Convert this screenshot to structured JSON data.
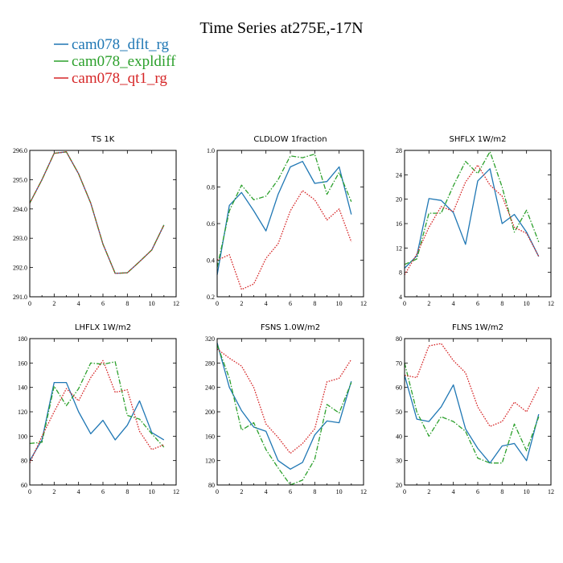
{
  "title": "Time Series at275E,-17N",
  "legend": [
    {
      "label": "cam078_dflt_rg",
      "color": "#1f77b4"
    },
    {
      "label": "cam078_expldiff",
      "color": "#2ca02c"
    },
    {
      "label": "cam078_qt1_rg",
      "color": "#d62728"
    }
  ],
  "chart_data": [
    {
      "type": "line",
      "title": "TS   1K",
      "xlim": [
        0,
        12
      ],
      "ylim": [
        291,
        296
      ],
      "xticks": [
        "0",
        "2",
        "4",
        "6",
        "8",
        "10",
        "12"
      ],
      "yticks": [
        "291.0",
        "292.0",
        "293.0",
        "294.0",
        "295.0",
        "296.0"
      ],
      "x": [
        0,
        1,
        2,
        3,
        4,
        5,
        6,
        7,
        8,
        9,
        10,
        11
      ],
      "series": [
        {
          "color": "#1f77b4",
          "dashed": false,
          "values": [
            294.2,
            295.0,
            295.9,
            295.95,
            295.2,
            294.2,
            292.8,
            291.8,
            291.82,
            292.2,
            292.6,
            293.45
          ]
        },
        {
          "color": "#2ca02c",
          "dashed": true,
          "values": [
            294.2,
            295.0,
            295.9,
            295.95,
            295.2,
            294.2,
            292.8,
            291.8,
            291.82,
            292.2,
            292.6,
            293.45
          ]
        },
        {
          "color": "#d62728",
          "dashed": true,
          "values": [
            294.2,
            295.0,
            295.9,
            295.95,
            295.2,
            294.2,
            292.8,
            291.8,
            291.82,
            292.2,
            292.6,
            293.45
          ]
        }
      ]
    },
    {
      "type": "line",
      "title": "CLDLOW   1fraction",
      "xlim": [
        0,
        12
      ],
      "ylim": [
        0.2,
        1.0
      ],
      "xticks": [
        "0",
        "2",
        "4",
        "6",
        "8",
        "10",
        "12"
      ],
      "yticks": [
        "0.2",
        "0.4",
        "0.6",
        "0.8",
        "1.0"
      ],
      "x": [
        0,
        1,
        2,
        3,
        4,
        5,
        6,
        7,
        8,
        9,
        10,
        11
      ],
      "series": [
        {
          "color": "#1f77b4",
          "dashed": false,
          "values": [
            0.32,
            0.7,
            0.77,
            0.67,
            0.56,
            0.76,
            0.91,
            0.94,
            0.82,
            0.83,
            0.91,
            0.65
          ]
        },
        {
          "color": "#2ca02c",
          "dashed": true,
          "values": [
            0.36,
            0.67,
            0.81,
            0.73,
            0.75,
            0.84,
            0.97,
            0.96,
            0.98,
            0.76,
            0.88,
            0.72
          ]
        },
        {
          "color": "#d62728",
          "dashed": true,
          "values": [
            0.4,
            0.43,
            0.24,
            0.27,
            0.41,
            0.49,
            0.67,
            0.78,
            0.73,
            0.62,
            0.68,
            0.5
          ]
        }
      ]
    },
    {
      "type": "line",
      "title": "SHFLX   1W/m2",
      "xlim": [
        0,
        12
      ],
      "ylim": [
        4,
        28
      ],
      "xticks": [
        "0",
        "2",
        "4",
        "6",
        "8",
        "10",
        "12"
      ],
      "yticks": [
        "4",
        "8",
        "12",
        "16",
        "20",
        "24",
        "28"
      ],
      "x": [
        0,
        1,
        2,
        3,
        4,
        5,
        6,
        7,
        8,
        9,
        10,
        11
      ],
      "series": [
        {
          "color": "#1f77b4",
          "dashed": false,
          "values": [
            8.7,
            10.7,
            20.1,
            19.8,
            17.8,
            12.6,
            23.0,
            25.0,
            16.0,
            17.5,
            14.6,
            10.6
          ]
        },
        {
          "color": "#2ca02c",
          "dashed": true,
          "values": [
            9.3,
            10.2,
            17.7,
            17.7,
            22.2,
            26.2,
            24.2,
            27.8,
            22.0,
            14.6,
            18.2,
            13.0
          ]
        },
        {
          "color": "#d62728",
          "dashed": true,
          "values": [
            7.6,
            11.0,
            15.4,
            18.8,
            18.0,
            22.8,
            25.6,
            22.3,
            20.5,
            15.4,
            14.4,
            10.6
          ]
        }
      ]
    },
    {
      "type": "line",
      "title": "LHFLX   1W/m2",
      "xlim": [
        0,
        12
      ],
      "ylim": [
        60,
        180
      ],
      "xticks": [
        "0",
        "2",
        "4",
        "6",
        "8",
        "10",
        "12"
      ],
      "yticks": [
        "60",
        "80",
        "100",
        "120",
        "140",
        "160",
        "180"
      ],
      "x": [
        0,
        1,
        2,
        3,
        4,
        5,
        6,
        7,
        8,
        9,
        10,
        11
      ],
      "series": [
        {
          "color": "#1f77b4",
          "dashed": false,
          "values": [
            80,
            97,
            144,
            144,
            120,
            102,
            113,
            97,
            109,
            129,
            103,
            97
          ]
        },
        {
          "color": "#2ca02c",
          "dashed": true,
          "values": [
            94,
            95,
            141,
            125,
            139,
            160,
            159,
            161,
            117,
            114,
            102,
            91
          ]
        },
        {
          "color": "#d62728",
          "dashed": true,
          "values": [
            78,
            100,
            120,
            139,
            129,
            148,
            162,
            136,
            138,
            104,
            89,
            93
          ]
        }
      ]
    },
    {
      "type": "line",
      "title": "FSNS   1.0W/m2",
      "xlim": [
        0,
        12
      ],
      "ylim": [
        80,
        320
      ],
      "xticks": [
        "0",
        "2",
        "4",
        "6",
        "8",
        "10",
        "12"
      ],
      "yticks": [
        "80",
        "120",
        "160",
        "200",
        "240",
        "280",
        "320"
      ],
      "x": [
        0,
        1,
        2,
        3,
        4,
        5,
        6,
        7,
        8,
        9,
        10,
        11
      ],
      "series": [
        {
          "color": "#1f77b4",
          "dashed": false,
          "values": [
            313,
            240,
            202,
            175,
            168,
            120,
            106,
            117,
            162,
            185,
            182,
            250
          ]
        },
        {
          "color": "#2ca02c",
          "dashed": true,
          "values": [
            310,
            255,
            170,
            182,
            138,
            108,
            80,
            88,
            122,
            212,
            198,
            248
          ]
        },
        {
          "color": "#d62728",
          "dashed": true,
          "values": [
            303,
            288,
            275,
            240,
            180,
            158,
            132,
            148,
            172,
            249,
            255,
            286
          ]
        }
      ]
    },
    {
      "type": "line",
      "title": "FLNS   1W/m2",
      "xlim": [
        0,
        12
      ],
      "ylim": [
        20,
        80
      ],
      "xticks": [
        "0",
        "2",
        "4",
        "6",
        "8",
        "10",
        "12"
      ],
      "yticks": [
        "20",
        "30",
        "40",
        "50",
        "60",
        "70",
        "80"
      ],
      "x": [
        0,
        1,
        2,
        3,
        4,
        5,
        6,
        7,
        8,
        9,
        10,
        11
      ],
      "series": [
        {
          "color": "#1f77b4",
          "dashed": false,
          "values": [
            65,
            47,
            46,
            52,
            61,
            43,
            35,
            29,
            36,
            37,
            30,
            49
          ]
        },
        {
          "color": "#2ca02c",
          "dashed": true,
          "values": [
            70,
            50,
            40,
            48,
            46,
            42,
            31,
            29,
            29,
            45,
            34,
            48
          ]
        },
        {
          "color": "#d62728",
          "dashed": true,
          "values": [
            65,
            64,
            77,
            78,
            71,
            66,
            52,
            44,
            46,
            54,
            50,
            60
          ]
        }
      ]
    }
  ]
}
